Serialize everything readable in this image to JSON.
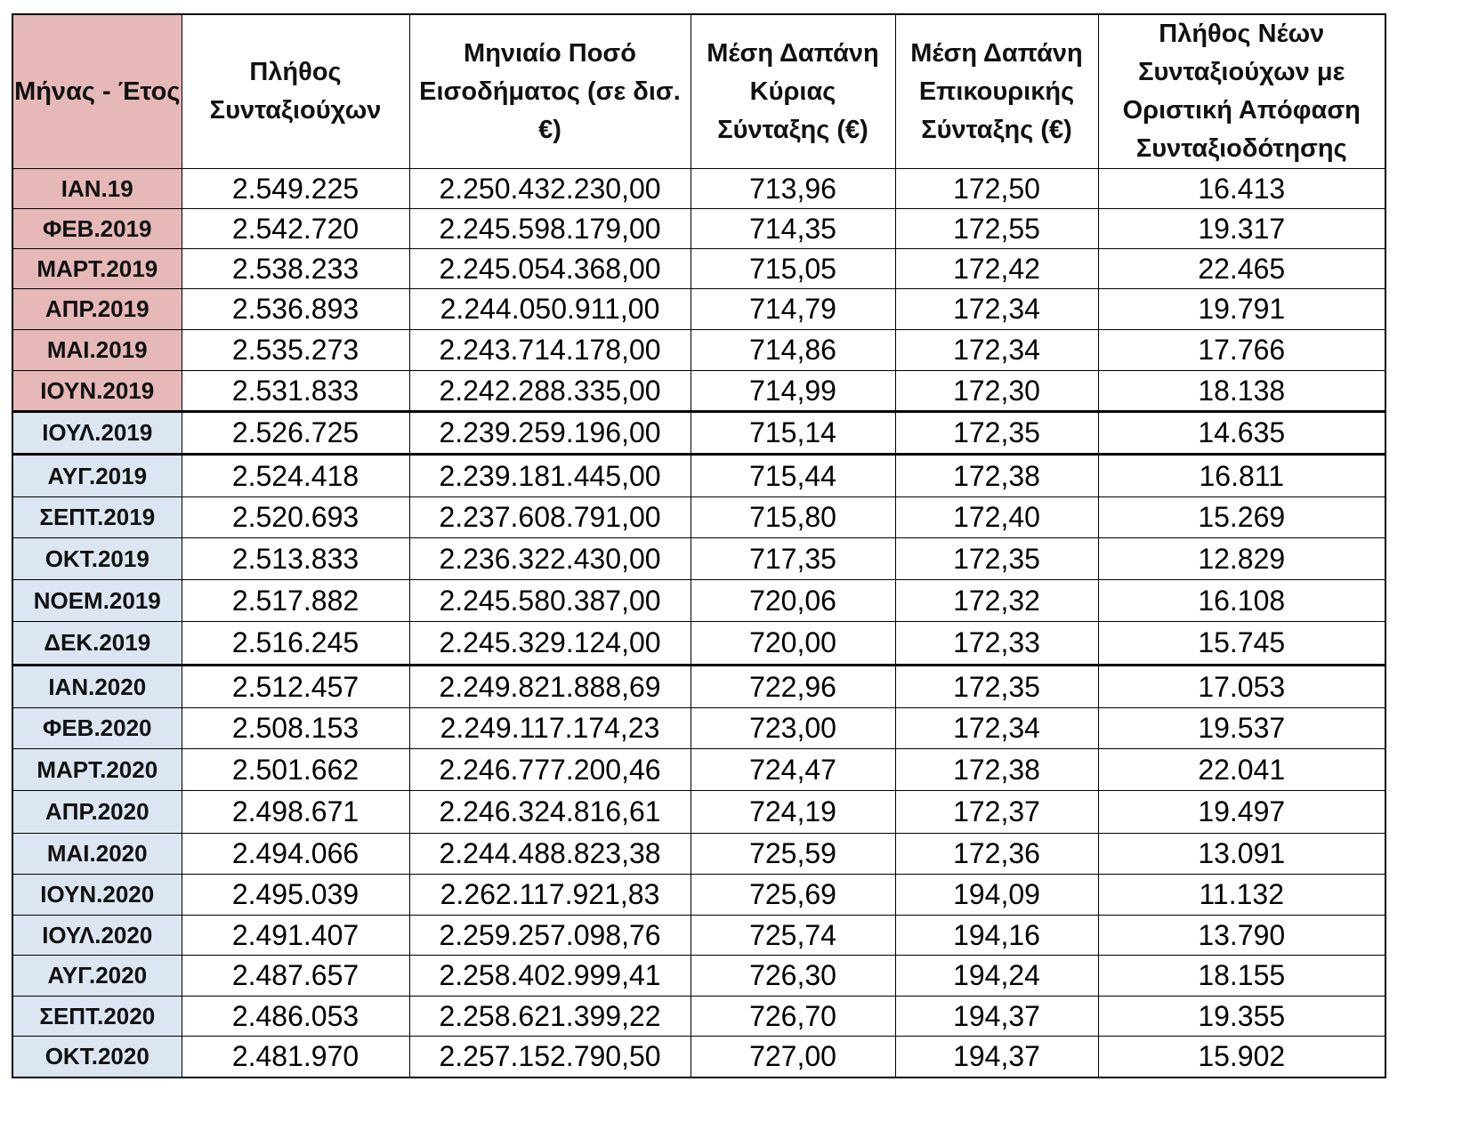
{
  "headers": [
    "Μήνας - Έτος",
    "Πλήθος Συνταξιούχων",
    "Μηνιαίο Ποσό Εισοδήματος (σε δισ. €)",
    "Μέση Δαπάνη Κύριας Σύνταξης (€)",
    "Μέση Δαπάνη Επικουρικής Σύνταξης (€)",
    "Πλήθος Νέων Συνταξιούχων με Οριστική Απόφαση Συνταξιοδότησης"
  ],
  "rows": [
    {
      "month": "ΙΑΝ.19",
      "pensioners": "2.549.225",
      "amount": "2.250.432.230,00",
      "main": "713,96",
      "aux": "172,50",
      "new": "16.413",
      "group": "pink"
    },
    {
      "month": "ΦΕΒ.2019",
      "pensioners": "2.542.720",
      "amount": "2.245.598.179,00",
      "main": "714,35",
      "aux": "172,55",
      "new": "19.317",
      "group": "pink"
    },
    {
      "month": "ΜΑΡΤ.2019",
      "pensioners": "2.538.233",
      "amount": "2.245.054.368,00",
      "main": "715,05",
      "aux": "172,42",
      "new": "22.465",
      "group": "pink"
    },
    {
      "month": "ΑΠΡ.2019",
      "pensioners": "2.536.893",
      "amount": "2.244.050.911,00",
      "main": "714,79",
      "aux": "172,34",
      "new": "19.791",
      "group": "pink"
    },
    {
      "month": "ΜΑΙ.2019",
      "pensioners": "2.535.273",
      "amount": "2.243.714.178,00",
      "main": "714,86",
      "aux": "172,34",
      "new": "17.766",
      "group": "pink"
    },
    {
      "month": "ΙΟΥΝ.2019",
      "pensioners": "2.531.833",
      "amount": "2.242.288.335,00",
      "main": "714,99",
      "aux": "172,30",
      "new": "18.138",
      "group": "pink"
    },
    {
      "month": "ΙΟΥΛ.2019",
      "pensioners": "2.526.725",
      "amount": "2.239.259.196,00",
      "main": "715,14",
      "aux": "172,35",
      "new": "14.635",
      "group": "blue"
    },
    {
      "month": "ΑΥΓ.2019",
      "pensioners": "2.524.418",
      "amount": "2.239.181.445,00",
      "main": "715,44",
      "aux": "172,38",
      "new": "16.811",
      "group": "blue"
    },
    {
      "month": "ΣΕΠΤ.2019",
      "pensioners": "2.520.693",
      "amount": "2.237.608.791,00",
      "main": "715,80",
      "aux": "172,40",
      "new": "15.269",
      "group": "blue"
    },
    {
      "month": "ΟΚΤ.2019",
      "pensioners": "2.513.833",
      "amount": "2.236.322.430,00",
      "main": "717,35",
      "aux": "172,35",
      "new": "12.829",
      "group": "blue"
    },
    {
      "month": "ΝΟΕΜ.2019",
      "pensioners": "2.517.882",
      "amount": "2.245.580.387,00",
      "main": "720,06",
      "aux": "172,32",
      "new": "16.108",
      "group": "blue"
    },
    {
      "month": "ΔΕΚ.2019",
      "pensioners": "2.516.245",
      "amount": "2.245.329.124,00",
      "main": "720,00",
      "aux": "172,33",
      "new": "15.745",
      "group": "blue"
    },
    {
      "month": "ΙΑΝ.2020",
      "pensioners": "2.512.457",
      "amount": "2.249.821.888,69",
      "main": "722,96",
      "aux": "172,35",
      "new": "17.053",
      "group": "blue"
    },
    {
      "month": "ΦΕΒ.2020",
      "pensioners": "2.508.153",
      "amount": "2.249.117.174,23",
      "main": "723,00",
      "aux": "172,34",
      "new": "19.537",
      "group": "blue"
    },
    {
      "month": "ΜΑΡΤ.2020",
      "pensioners": "2.501.662",
      "amount": "2.246.777.200,46",
      "main": "724,47",
      "aux": "172,38",
      "new": "22.041",
      "group": "blue"
    },
    {
      "month": "ΑΠΡ.2020",
      "pensioners": "2.498.671",
      "amount": "2.246.324.816,61",
      "main": "724,19",
      "aux": "172,37",
      "new": "19.497",
      "group": "blue"
    },
    {
      "month": "ΜΑΙ.2020",
      "pensioners": "2.494.066",
      "amount": "2.244.488.823,38",
      "main": "725,59",
      "aux": "172,36",
      "new": "13.091",
      "group": "blue"
    },
    {
      "month": "ΙΟΥΝ.2020",
      "pensioners": "2.495.039",
      "amount": "2.262.117.921,83",
      "main": "725,69",
      "aux": "194,09",
      "new": "11.132",
      "group": "blue"
    },
    {
      "month": "ΙΟΥΛ.2020",
      "pensioners": "2.491.407",
      "amount": "2.259.257.098,76",
      "main": "725,74",
      "aux": "194,16",
      "new": "13.790",
      "group": "blue"
    },
    {
      "month": "ΑΥΓ.2020",
      "pensioners": "2.487.657",
      "amount": "2.258.402.999,41",
      "main": "726,30",
      "aux": "194,24",
      "new": "18.155",
      "group": "blue"
    },
    {
      "month": "ΣΕΠΤ.2020",
      "pensioners": "2.486.053",
      "amount": "2.258.621.399,22",
      "main": "726,70",
      "aux": "194,37",
      "new": "19.355",
      "group": "blue"
    },
    {
      "month": "ΟΚΤ.2020",
      "pensioners": "2.481.970",
      "amount": "2.257.152.790,50",
      "main": "727,00",
      "aux": "194,37",
      "new": "15.902",
      "group": "blue"
    }
  ],
  "colors": {
    "pink": "#e6b8b8",
    "blue": "#dce6f2",
    "border": "#000000"
  }
}
